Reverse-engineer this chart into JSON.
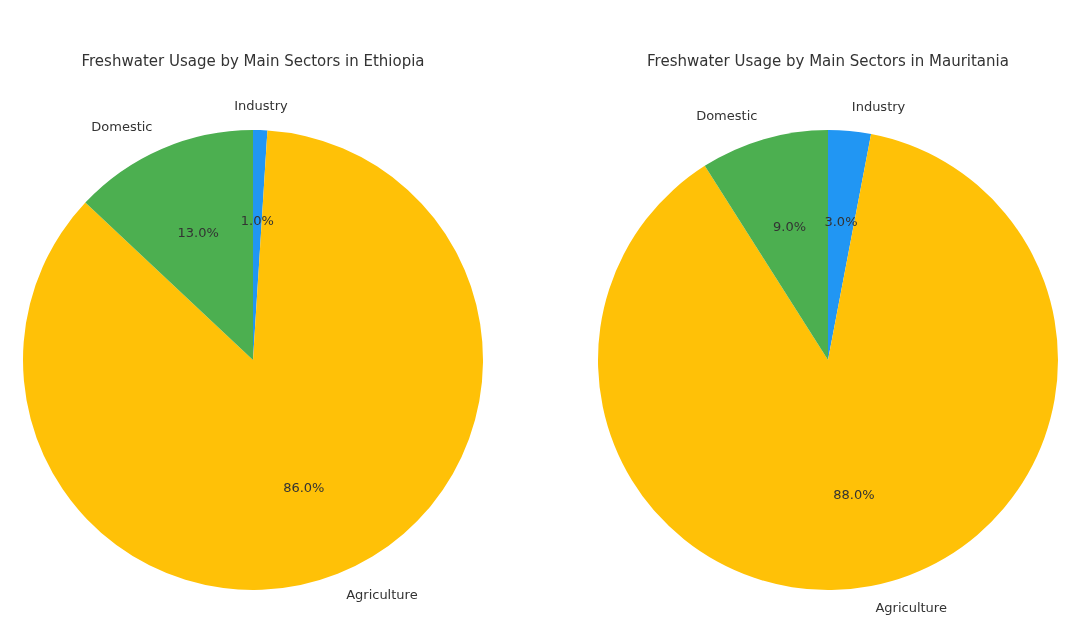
{
  "chart_data": [
    {
      "type": "pie",
      "title": "Freshwater Usage by Main Sectors in Ethiopia",
      "categories": [
        "Industry",
        "Agriculture",
        "Domestic"
      ],
      "values": [
        1,
        86,
        13
      ],
      "colors": [
        "#2196f3",
        "#ffc107",
        "#4caf50"
      ],
      "value_labels": [
        "1.0%",
        "86.0%",
        "13.0%"
      ],
      "legend": false
    },
    {
      "type": "pie",
      "title": "Freshwater Usage by Main Sectors in Mauritania",
      "categories": [
        "Industry",
        "Agriculture",
        "Domestic"
      ],
      "values": [
        3,
        88,
        9
      ],
      "colors": [
        "#2196f3",
        "#ffc107",
        "#4caf50"
      ],
      "value_labels": [
        "3.0%",
        "88.0%",
        "9.0%"
      ],
      "legend": false
    }
  ]
}
